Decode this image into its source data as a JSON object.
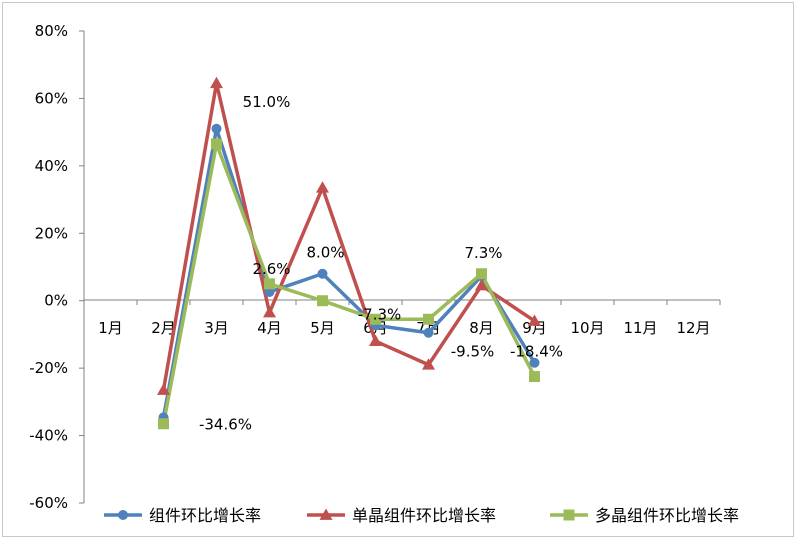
{
  "chart_data": {
    "type": "line",
    "categories": [
      "1月",
      "2月",
      "3月",
      "4月",
      "5月",
      "6月",
      "7月",
      "8月",
      "9月",
      "10月",
      "11月",
      "12月"
    ],
    "ylim": [
      -60,
      80
    ],
    "yticks": [
      80,
      60,
      40,
      20,
      0,
      -20,
      -40,
      -60
    ],
    "ytick_labels": [
      "80%",
      "60%",
      "40%",
      "20%",
      "0%",
      "-20%",
      "-40%",
      "-60%"
    ],
    "grid": false,
    "legend": "bottom",
    "series": [
      {
        "name": "组件环比增长率",
        "color": "#4f81bd",
        "marker": "circle",
        "values": [
          null,
          -34.6,
          51.0,
          2.6,
          8.0,
          -7.3,
          -9.5,
          7.3,
          -18.4,
          null,
          null,
          null
        ]
      },
      {
        "name": "单晶组件环比增长率",
        "color": "#c0504d",
        "marker": "triangle",
        "values": [
          null,
          -26.5,
          64.5,
          -3.5,
          33.5,
          -12.0,
          -19.0,
          4.5,
          -6.0,
          null,
          null,
          null
        ]
      },
      {
        "name": "多晶组件环比增长率",
        "color": "#9bbb59",
        "marker": "square",
        "values": [
          null,
          -36.5,
          46.5,
          5.0,
          0.0,
          -5.5,
          -5.5,
          8.0,
          -22.5,
          null,
          null,
          null
        ]
      }
    ],
    "data_labels": [
      {
        "category": "2月",
        "text": "-34.6%"
      },
      {
        "category": "3月",
        "text": "51.0%"
      },
      {
        "category": "4月",
        "text": "2.6%"
      },
      {
        "category": "5月",
        "text": "8.0%"
      },
      {
        "category": "6月",
        "text": "-7.3%"
      },
      {
        "category": "7月",
        "text": "-9.5%"
      },
      {
        "category": "8月",
        "text": "7.3%"
      },
      {
        "category": "9月",
        "text": "-18.4%"
      }
    ]
  }
}
